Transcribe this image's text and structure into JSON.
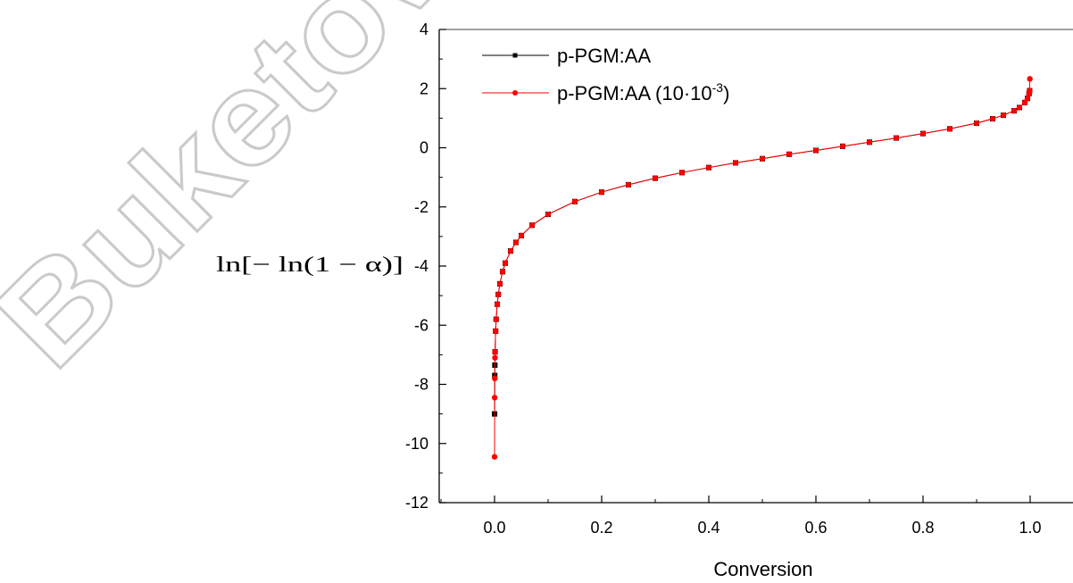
{
  "watermark": {
    "text": "Buketov"
  },
  "chart_data": {
    "type": "scatter",
    "title": "",
    "xlabel": "Conversion",
    "ylabel": "ln[− ln(1 − α)]",
    "xlim": [
      -0.12,
      1.12
    ],
    "ylim": [
      -12,
      4
    ],
    "xticks": [
      0.0,
      0.2,
      0.4,
      0.6,
      0.8,
      1.0
    ],
    "xtick_labels": [
      "0.0",
      "0.2",
      "0.4",
      "0.6",
      "0.8",
      "1.0"
    ],
    "yticks": [
      -12,
      -10,
      -8,
      -6,
      -4,
      -2,
      0,
      2,
      4
    ],
    "ytick_labels": [
      "-12",
      "-10",
      "-8",
      "-6",
      "-4",
      "-2",
      "0",
      "2",
      "4"
    ],
    "grid": false,
    "legend_position": "top-left",
    "series": [
      {
        "name": "p-PGM:AA",
        "color": "#000000",
        "marker": "square",
        "x": [
          0.0001,
          0.0004,
          0.0006,
          0.001,
          0.002,
          0.003,
          0.005,
          0.007,
          0.01,
          0.015,
          0.02,
          0.03,
          0.04,
          0.05,
          0.07,
          0.1,
          0.15,
          0.2,
          0.25,
          0.3,
          0.35,
          0.4,
          0.45,
          0.5,
          0.55,
          0.6,
          0.65,
          0.7,
          0.75,
          0.8,
          0.85,
          0.9,
          0.93,
          0.95,
          0.97,
          0.98,
          0.99,
          0.995,
          0.998,
          0.999
        ],
        "y": [
          -9.0,
          -7.7,
          -7.35,
          -6.9,
          -6.2,
          -5.8,
          -5.29,
          -4.96,
          -4.6,
          -4.19,
          -3.9,
          -3.49,
          -3.2,
          -2.97,
          -2.62,
          -2.25,
          -1.82,
          -1.5,
          -1.25,
          -1.03,
          -0.84,
          -0.67,
          -0.51,
          -0.37,
          -0.22,
          -0.09,
          0.05,
          0.19,
          0.33,
          0.48,
          0.64,
          0.83,
          0.98,
          1.1,
          1.25,
          1.36,
          1.53,
          1.67,
          1.83,
          1.93
        ]
      },
      {
        "name": "p-PGM:AA (10·10-3)",
        "legend_label": "p-PGM:AA (10·10",
        "legend_sup": "-3",
        "legend_close": ")",
        "color": "#ff0000",
        "marker": "circle",
        "x": [
          3e-05,
          0.0002,
          0.0004,
          0.0008,
          0.001,
          0.002,
          0.003,
          0.005,
          0.007,
          0.01,
          0.015,
          0.02,
          0.03,
          0.04,
          0.05,
          0.07,
          0.1,
          0.15,
          0.2,
          0.25,
          0.3,
          0.35,
          0.4,
          0.45,
          0.5,
          0.55,
          0.6,
          0.65,
          0.7,
          0.75,
          0.8,
          0.85,
          0.9,
          0.93,
          0.95,
          0.97,
          0.98,
          0.99,
          0.995,
          0.998,
          0.999,
          0.9995
        ],
        "y": [
          -10.45,
          -8.45,
          -7.8,
          -7.1,
          -6.9,
          -6.2,
          -5.8,
          -5.29,
          -4.96,
          -4.6,
          -4.19,
          -3.9,
          -3.49,
          -3.2,
          -2.97,
          -2.62,
          -2.25,
          -1.82,
          -1.5,
          -1.25,
          -1.03,
          -0.84,
          -0.67,
          -0.51,
          -0.37,
          -0.22,
          -0.09,
          0.05,
          0.19,
          0.33,
          0.48,
          0.64,
          0.83,
          0.98,
          1.1,
          1.25,
          1.36,
          1.53,
          1.67,
          1.83,
          1.93,
          2.33
        ]
      }
    ]
  }
}
